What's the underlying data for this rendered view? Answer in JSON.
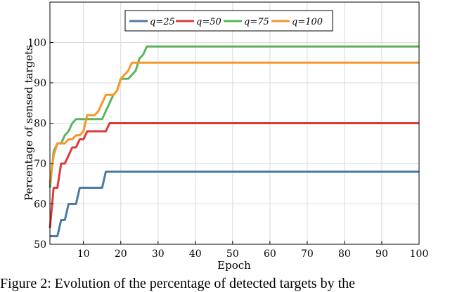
{
  "caption": "Figure 2: Evolution of the percentage of detected targets by the",
  "chart_data": {
    "type": "line",
    "title": "",
    "xlabel": "Epoch",
    "ylabel": "Percentage of sensed targets",
    "xlim": [
      1,
      100
    ],
    "ylim": [
      50,
      110
    ],
    "xticks": [
      10,
      20,
      30,
      40,
      50,
      60,
      70,
      80,
      90,
      100
    ],
    "yticks": [
      50,
      60,
      70,
      80,
      90,
      100
    ],
    "grid": true,
    "legend_position": "top-center",
    "series": [
      {
        "name": "q=25",
        "color": "#4a7ba6",
        "points": [
          [
            1,
            52
          ],
          [
            3,
            52
          ],
          [
            4,
            56
          ],
          [
            5,
            56
          ],
          [
            6,
            60
          ],
          [
            8,
            60
          ],
          [
            9,
            64
          ],
          [
            11,
            64
          ],
          [
            12,
            64
          ],
          [
            15,
            64
          ],
          [
            16,
            68
          ],
          [
            100,
            68
          ]
        ]
      },
      {
        "name": "q=50",
        "color": "#dc3b3b",
        "points": [
          [
            1,
            54
          ],
          [
            2,
            64
          ],
          [
            3,
            64
          ],
          [
            4,
            70
          ],
          [
            5,
            70
          ],
          [
            6,
            72
          ],
          [
            7,
            74
          ],
          [
            8,
            74
          ],
          [
            9,
            76
          ],
          [
            10,
            76
          ],
          [
            11,
            78
          ],
          [
            15,
            78
          ],
          [
            16,
            78
          ],
          [
            17,
            80
          ],
          [
            100,
            80
          ]
        ]
      },
      {
        "name": "q=75",
        "color": "#5ab55a",
        "points": [
          [
            1,
            64
          ],
          [
            2,
            73
          ],
          [
            3,
            75
          ],
          [
            4,
            75
          ],
          [
            5,
            77
          ],
          [
            6,
            78
          ],
          [
            7,
            80
          ],
          [
            8,
            81
          ],
          [
            9,
            81
          ],
          [
            10,
            81
          ],
          [
            11,
            81
          ],
          [
            12,
            81
          ],
          [
            15,
            81
          ],
          [
            16,
            83
          ],
          [
            17,
            85
          ],
          [
            18,
            87
          ],
          [
            19,
            88
          ],
          [
            20,
            91
          ],
          [
            21,
            91
          ],
          [
            22,
            91
          ],
          [
            23,
            92
          ],
          [
            24,
            93
          ],
          [
            25,
            96
          ],
          [
            26,
            97
          ],
          [
            27,
            99
          ],
          [
            100,
            99
          ]
        ]
      },
      {
        "name": "q=100",
        "color": "#f5982a",
        "points": [
          [
            1,
            65
          ],
          [
            2,
            72
          ],
          [
            3,
            75
          ],
          [
            4,
            75
          ],
          [
            5,
            75
          ],
          [
            6,
            76
          ],
          [
            7,
            76
          ],
          [
            8,
            77
          ],
          [
            9,
            77
          ],
          [
            10,
            78
          ],
          [
            11,
            82
          ],
          [
            12,
            82
          ],
          [
            13,
            82
          ],
          [
            14,
            83
          ],
          [
            15,
            85
          ],
          [
            16,
            87
          ],
          [
            17,
            87
          ],
          [
            18,
            87
          ],
          [
            19,
            88
          ],
          [
            20,
            91
          ],
          [
            21,
            92
          ],
          [
            22,
            93
          ],
          [
            23,
            95
          ],
          [
            24,
            95
          ],
          [
            25,
            95
          ],
          [
            26,
            95
          ],
          [
            100,
            95
          ]
        ]
      }
    ]
  }
}
